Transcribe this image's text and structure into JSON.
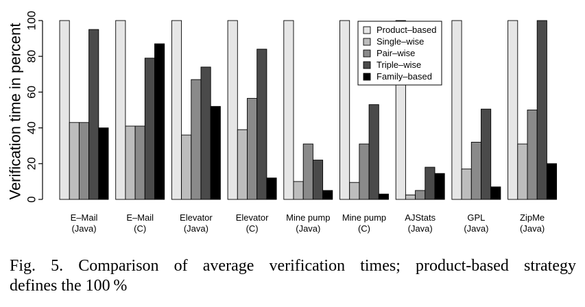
{
  "chart_data": {
    "type": "bar",
    "ylabel": "Verification time in percent",
    "xlabel": "",
    "ylim": [
      0,
      100
    ],
    "yticks": [
      0,
      20,
      40,
      60,
      80,
      100
    ],
    "grid": false,
    "legend_position": "top-right",
    "categories": [
      {
        "line1": "E–Mail",
        "line2": "(Java)"
      },
      {
        "line1": "E–Mail",
        "line2": "(C)"
      },
      {
        "line1": "Elevator",
        "line2": "(Java)"
      },
      {
        "line1": "Elevator",
        "line2": "(C)"
      },
      {
        "line1": "Mine pump",
        "line2": "(Java)"
      },
      {
        "line1": "Mine pump",
        "line2": "(C)"
      },
      {
        "line1": "AJStats",
        "line2": "(Java)"
      },
      {
        "line1": "GPL",
        "line2": "(Java)"
      },
      {
        "line1": "ZipMe",
        "line2": "(Java)"
      }
    ],
    "series": [
      {
        "name": "Product–based",
        "color": "#e6e6e6",
        "values": [
          100,
          100,
          100,
          100,
          100,
          100,
          100,
          100,
          100
        ]
      },
      {
        "name": "Single–wise",
        "color": "#bdbdbd",
        "values": [
          43,
          41,
          36,
          39,
          10,
          9.5,
          2.5,
          17,
          31
        ]
      },
      {
        "name": "Pair–wise",
        "color": "#8a8a8a",
        "values": [
          43,
          41,
          67,
          56.5,
          31,
          31,
          5,
          32,
          50
        ]
      },
      {
        "name": "Triple–wise",
        "color": "#4a4a4a",
        "values": [
          95,
          79,
          74,
          84,
          22,
          53,
          18,
          50.5,
          100
        ]
      },
      {
        "name": "Family–based",
        "color": "#000000",
        "values": [
          40,
          87,
          52,
          12,
          5,
          3,
          14.5,
          7,
          20
        ]
      }
    ]
  },
  "caption": {
    "line1": "Fig. 5.  Comparison of average verification times; product-based strategy",
    "line2": "defines the 100 %"
  }
}
